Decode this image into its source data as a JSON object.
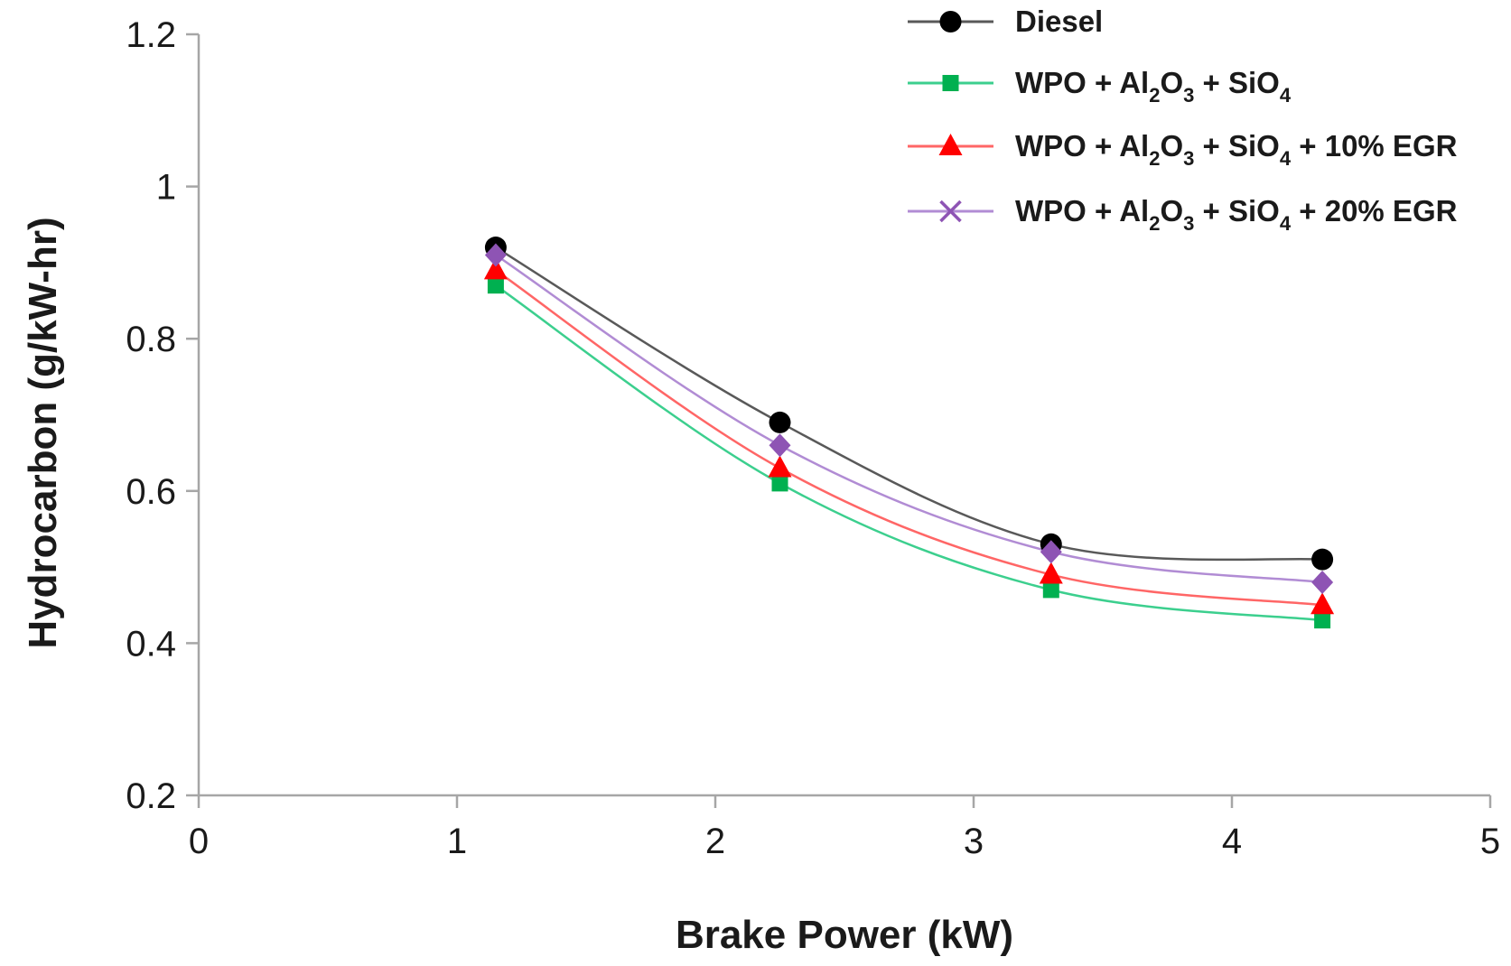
{
  "chart_data": {
    "type": "line",
    "title": "",
    "xlabel": "Brake Power (kW)",
    "ylabel": "Hydrocarbon (g/kW-hr)",
    "xlim": [
      0,
      5
    ],
    "ylim": [
      0.2,
      1.2
    ],
    "xticks": [
      0,
      1,
      2,
      3,
      4,
      5
    ],
    "yticks": [
      0.2,
      0.4,
      0.6,
      0.8,
      1,
      1.2
    ],
    "xtick_labels": [
      "0",
      "1",
      "2",
      "3",
      "4",
      "5"
    ],
    "ytick_labels": [
      "0.2",
      "0.4",
      "0.6",
      "0.8",
      "1",
      "1.2"
    ],
    "grid": false,
    "legend_position": "top-right",
    "x": [
      1.15,
      2.25,
      3.3,
      4.35
    ],
    "series": [
      {
        "name": "Diesel",
        "label_parts": [
          {
            "t": "Diesel"
          }
        ],
        "color": "#000000",
        "line_color": "#595959",
        "marker": "circle",
        "values": [
          0.92,
          0.69,
          0.53,
          0.51
        ]
      },
      {
        "name": "WPO + Al2O3 + SiO4",
        "label_parts": [
          {
            "t": "WPO + Al"
          },
          {
            "t": "2",
            "sub": true
          },
          {
            "t": "O"
          },
          {
            "t": "3",
            "sub": true
          },
          {
            "t": " + SiO"
          },
          {
            "t": "4",
            "sub": true
          }
        ],
        "color": "#00b050",
        "line_color": "#3ccf8e",
        "marker": "square",
        "values": [
          0.87,
          0.61,
          0.47,
          0.43
        ]
      },
      {
        "name": "WPO + Al2O3 + SiO4 + 10% EGR",
        "label_parts": [
          {
            "t": "WPO + Al"
          },
          {
            "t": "2",
            "sub": true
          },
          {
            "t": "O"
          },
          {
            "t": "3",
            "sub": true
          },
          {
            "t": " + SiO"
          },
          {
            "t": "4",
            "sub": true
          },
          {
            "t": " + 10% EGR"
          }
        ],
        "color": "#ff0000",
        "line_color": "#ff6666",
        "marker": "triangle",
        "values": [
          0.89,
          0.63,
          0.49,
          0.45
        ]
      },
      {
        "name": "WPO + Al2O3 + SiO4 + 20% EGR",
        "label_parts": [
          {
            "t": "WPO + Al"
          },
          {
            "t": "2",
            "sub": true
          },
          {
            "t": "O"
          },
          {
            "t": "3",
            "sub": true
          },
          {
            "t": " + SiO"
          },
          {
            "t": "4",
            "sub": true
          },
          {
            "t": " + 20% EGR"
          }
        ],
        "color": "#8e54b4",
        "line_color": "#b18cd4",
        "marker": "diamond",
        "legend_marker": "cross",
        "values": [
          0.91,
          0.66,
          0.52,
          0.48
        ]
      }
    ]
  }
}
